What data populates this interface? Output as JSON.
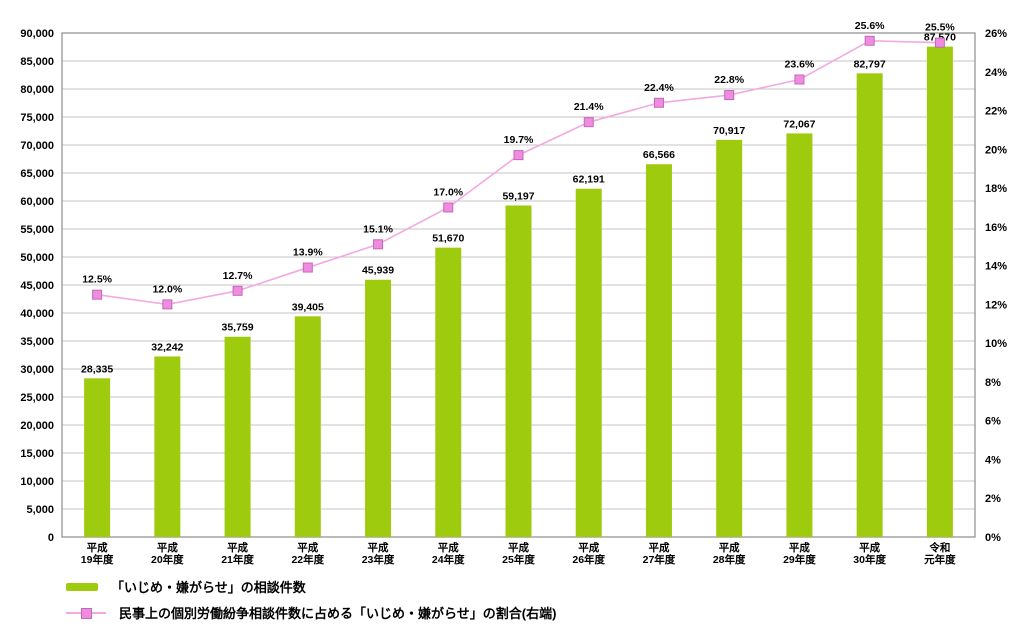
{
  "chart_data": {
    "type": "combo-bar-line",
    "title": "",
    "categories": [
      [
        "平成",
        "19年度"
      ],
      [
        "平成",
        "20年度"
      ],
      [
        "平成",
        "21年度"
      ],
      [
        "平成",
        "22年度"
      ],
      [
        "平成",
        "23年度"
      ],
      [
        "平成",
        "24年度"
      ],
      [
        "平成",
        "25年度"
      ],
      [
        "平成",
        "26年度"
      ],
      [
        "平成",
        "27年度"
      ],
      [
        "平成",
        "28年度"
      ],
      [
        "平成",
        "29年度"
      ],
      [
        "平成",
        "30年度"
      ],
      [
        "令和",
        "元年度"
      ]
    ],
    "series": [
      {
        "name": "「いじめ・嫌がらせ」の相談件数",
        "type": "bar",
        "axis": "left",
        "color": "#9FCB0F",
        "values": [
          28335,
          32242,
          35759,
          39405,
          45939,
          51670,
          59197,
          62191,
          66566,
          70917,
          72067,
          82797,
          87570
        ],
        "labels": [
          "28,335",
          "32,242",
          "35,759",
          "39,405",
          "45,939",
          "51,670",
          "59,197",
          "62,191",
          "66,566",
          "70,917",
          "72,067",
          "82,797",
          "87,570"
        ]
      },
      {
        "name": "民事上の個別労働紛争相談件数に占める「いじめ・嫌がらせ」の割合(右端)",
        "type": "line",
        "axis": "right",
        "line_color": "#F2A9E2",
        "marker_color": "#F08CE0",
        "marker_border_color": "#C468B8",
        "values": [
          12.5,
          12.0,
          12.7,
          13.9,
          15.1,
          17.0,
          19.7,
          21.4,
          22.4,
          22.8,
          23.6,
          25.6,
          25.5
        ],
        "labels": [
          "12.5%",
          "12.0%",
          "12.7%",
          "13.9%",
          "15.1%",
          "17.0%",
          "19.7%",
          "21.4%",
          "22.4%",
          "22.8%",
          "23.6%",
          "25.6%",
          "25.5%"
        ]
      }
    ],
    "left_axis": {
      "min": 0,
      "max": 90000,
      "step": 5000
    },
    "right_axis": {
      "min": 0,
      "max": 26,
      "step": 2,
      "suffix": "%"
    },
    "grid": true,
    "legend_position": "bottom-left",
    "style": {
      "grid_color": "#C6C6C6",
      "border_color": "#8C8C8C",
      "text_color": "#000000",
      "background": "#FFFFFF"
    }
  }
}
